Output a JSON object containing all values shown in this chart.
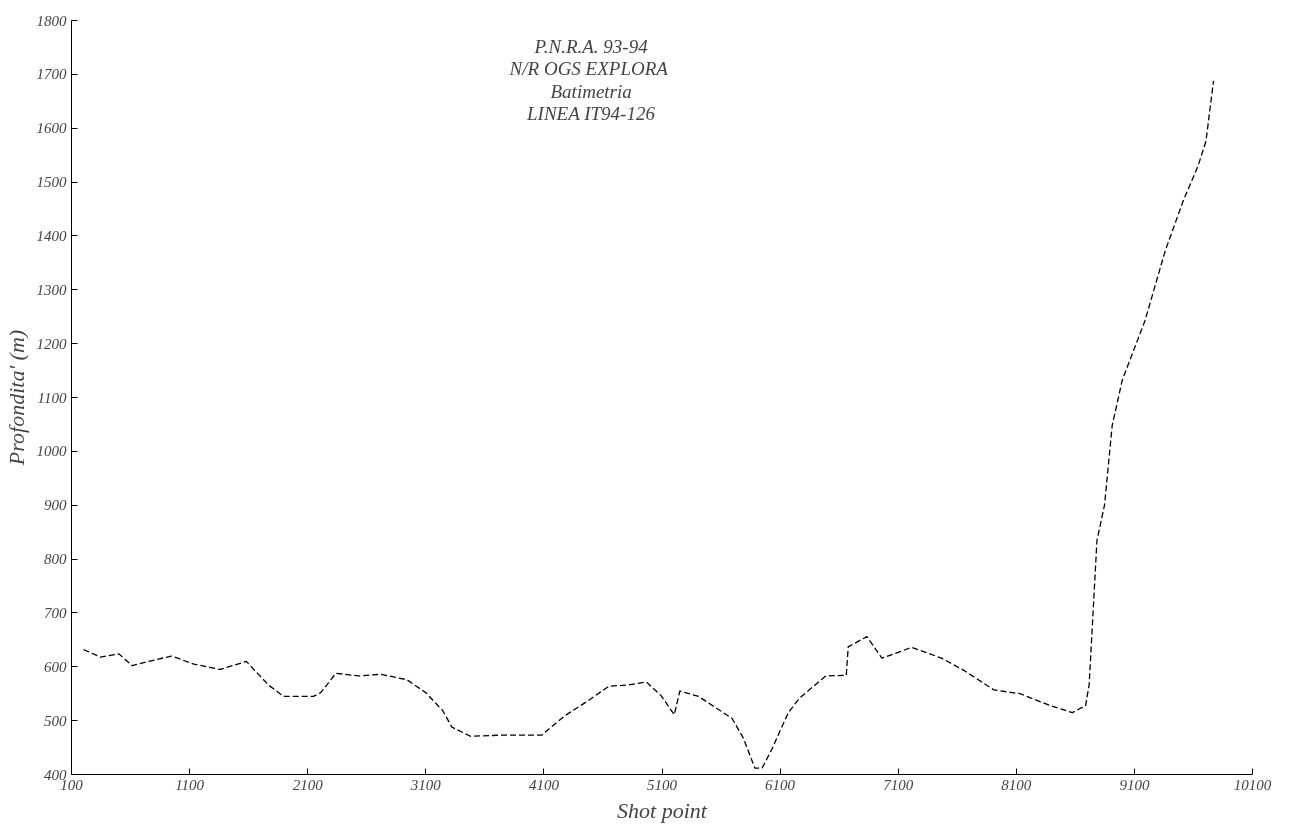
{
  "chart_data": {
    "type": "line",
    "title": "P.N.R.A. 93-94\nN/R  OGS EXPLORA\nBatimetria\nLINEA IT94-126",
    "xlabel": "Shot point",
    "ylabel": "Profondita' (m)",
    "x": [
      202,
      345,
      502,
      613,
      756,
      946,
      1136,
      1358,
      1580,
      1769,
      1896,
      2148,
      2210,
      2339,
      2529,
      2719,
      2940,
      3099,
      3242,
      3321,
      3478,
      3732,
      4081,
      4270,
      4461,
      4651,
      4808,
      4967,
      5094,
      5204,
      5251,
      5410,
      5694,
      5790,
      5886,
      5948,
      6028,
      6170,
      6265,
      6487,
      6660,
      6677,
      6835,
      6962,
      7215,
      7467,
      7659,
      7910,
      8132,
      8386,
      8575,
      8687,
      8717,
      8783,
      8847,
      8912,
      8997,
      9190,
      9362,
      9513,
      9639,
      9706,
      9770
    ],
    "series": [
      {
        "color": "#000000",
        "values": [
          632,
          618,
          624,
          602,
          610,
          620,
          605,
          595,
          610,
          566,
          545,
          545,
          552,
          588,
          583,
          586,
          576,
          552,
          519,
          488,
          471,
          473,
          473,
          508,
          535,
          564,
          566,
          572,
          546,
          511,
          555,
          545,
          504,
          467,
          412,
          412,
          446,
          515,
          542,
          583,
          584,
          637,
          656,
          616,
          636,
          616,
          593,
          557,
          550,
          528,
          515,
          528,
          567,
          835,
          900,
          1048,
          1132,
          1243,
          1373,
          1465,
          1530,
          1576,
          1688
        ]
      }
    ],
    "xlim": [
      100,
      10100
    ],
    "ylim": [
      400,
      1800
    ],
    "xticks": [
      100,
      1100,
      2100,
      3100,
      4100,
      5100,
      6100,
      7100,
      8100,
      9100,
      10100
    ],
    "yticks": [
      400,
      500,
      600,
      700,
      800,
      900,
      1000,
      1100,
      1200,
      1300,
      1400,
      1500,
      1600,
      1700,
      1800
    ],
    "grid": false,
    "marker": "none",
    "line_style": "dashed"
  }
}
